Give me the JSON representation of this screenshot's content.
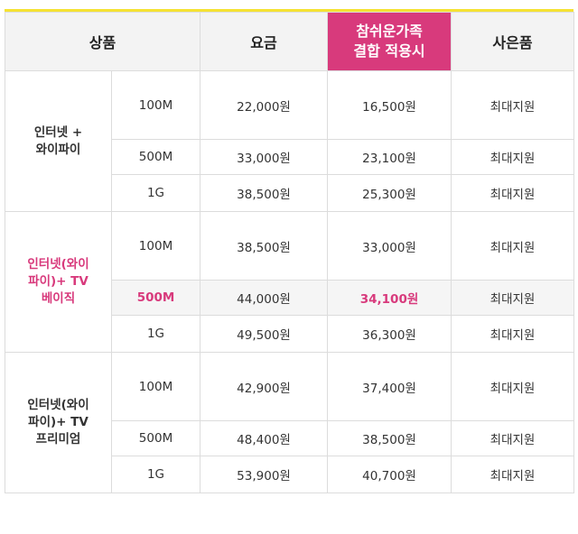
{
  "table": {
    "headers": {
      "product": "상품",
      "price": "요금",
      "discount_line1": "참쉬운가족",
      "discount_line2": "결합 적용시",
      "gift": "사은품"
    },
    "groups": [
      {
        "name_lines": [
          "인터넷 +",
          "와이파이"
        ],
        "highlight": false,
        "rows": [
          {
            "speed": "100M",
            "price": "22,000원",
            "discount": "16,500원",
            "gift": "최대지원"
          },
          {
            "speed": "500M",
            "price": "33,000원",
            "discount": "23,100원",
            "gift": "최대지원"
          },
          {
            "speed": "1G",
            "price": "38,500원",
            "discount": "25,300원",
            "gift": "최대지원"
          }
        ]
      },
      {
        "name_lines": [
          "인터넷(와이",
          "파이)+ TV",
          "베이직"
        ],
        "highlight": true,
        "rows": [
          {
            "speed": "100M",
            "price": "38,500원",
            "discount": "33,000원",
            "gift": "최대지원"
          },
          {
            "speed": "500M",
            "price": "44,000원",
            "discount": "34,100원",
            "gift": "최대지원"
          },
          {
            "speed": "1G",
            "price": "49,500원",
            "discount": "36,300원",
            "gift": "최대지원"
          }
        ]
      },
      {
        "name_lines": [
          "인터넷(와이",
          "파이)+ TV",
          "프리미엄"
        ],
        "highlight": false,
        "rows": [
          {
            "speed": "100M",
            "price": "42,900원",
            "discount": "37,400원",
            "gift": "최대지원"
          },
          {
            "speed": "500M",
            "price": "48,400원",
            "discount": "38,500원",
            "gift": "최대지원"
          },
          {
            "speed": "1G",
            "price": "53,900원",
            "discount": "40,700원",
            "gift": "최대지원"
          }
        ]
      }
    ],
    "colors": {
      "accent": "#d83a7c",
      "top_border": "#f5e233",
      "header_bg": "#f3f3f3",
      "highlight_row_bg": "#f5f5f5"
    }
  }
}
